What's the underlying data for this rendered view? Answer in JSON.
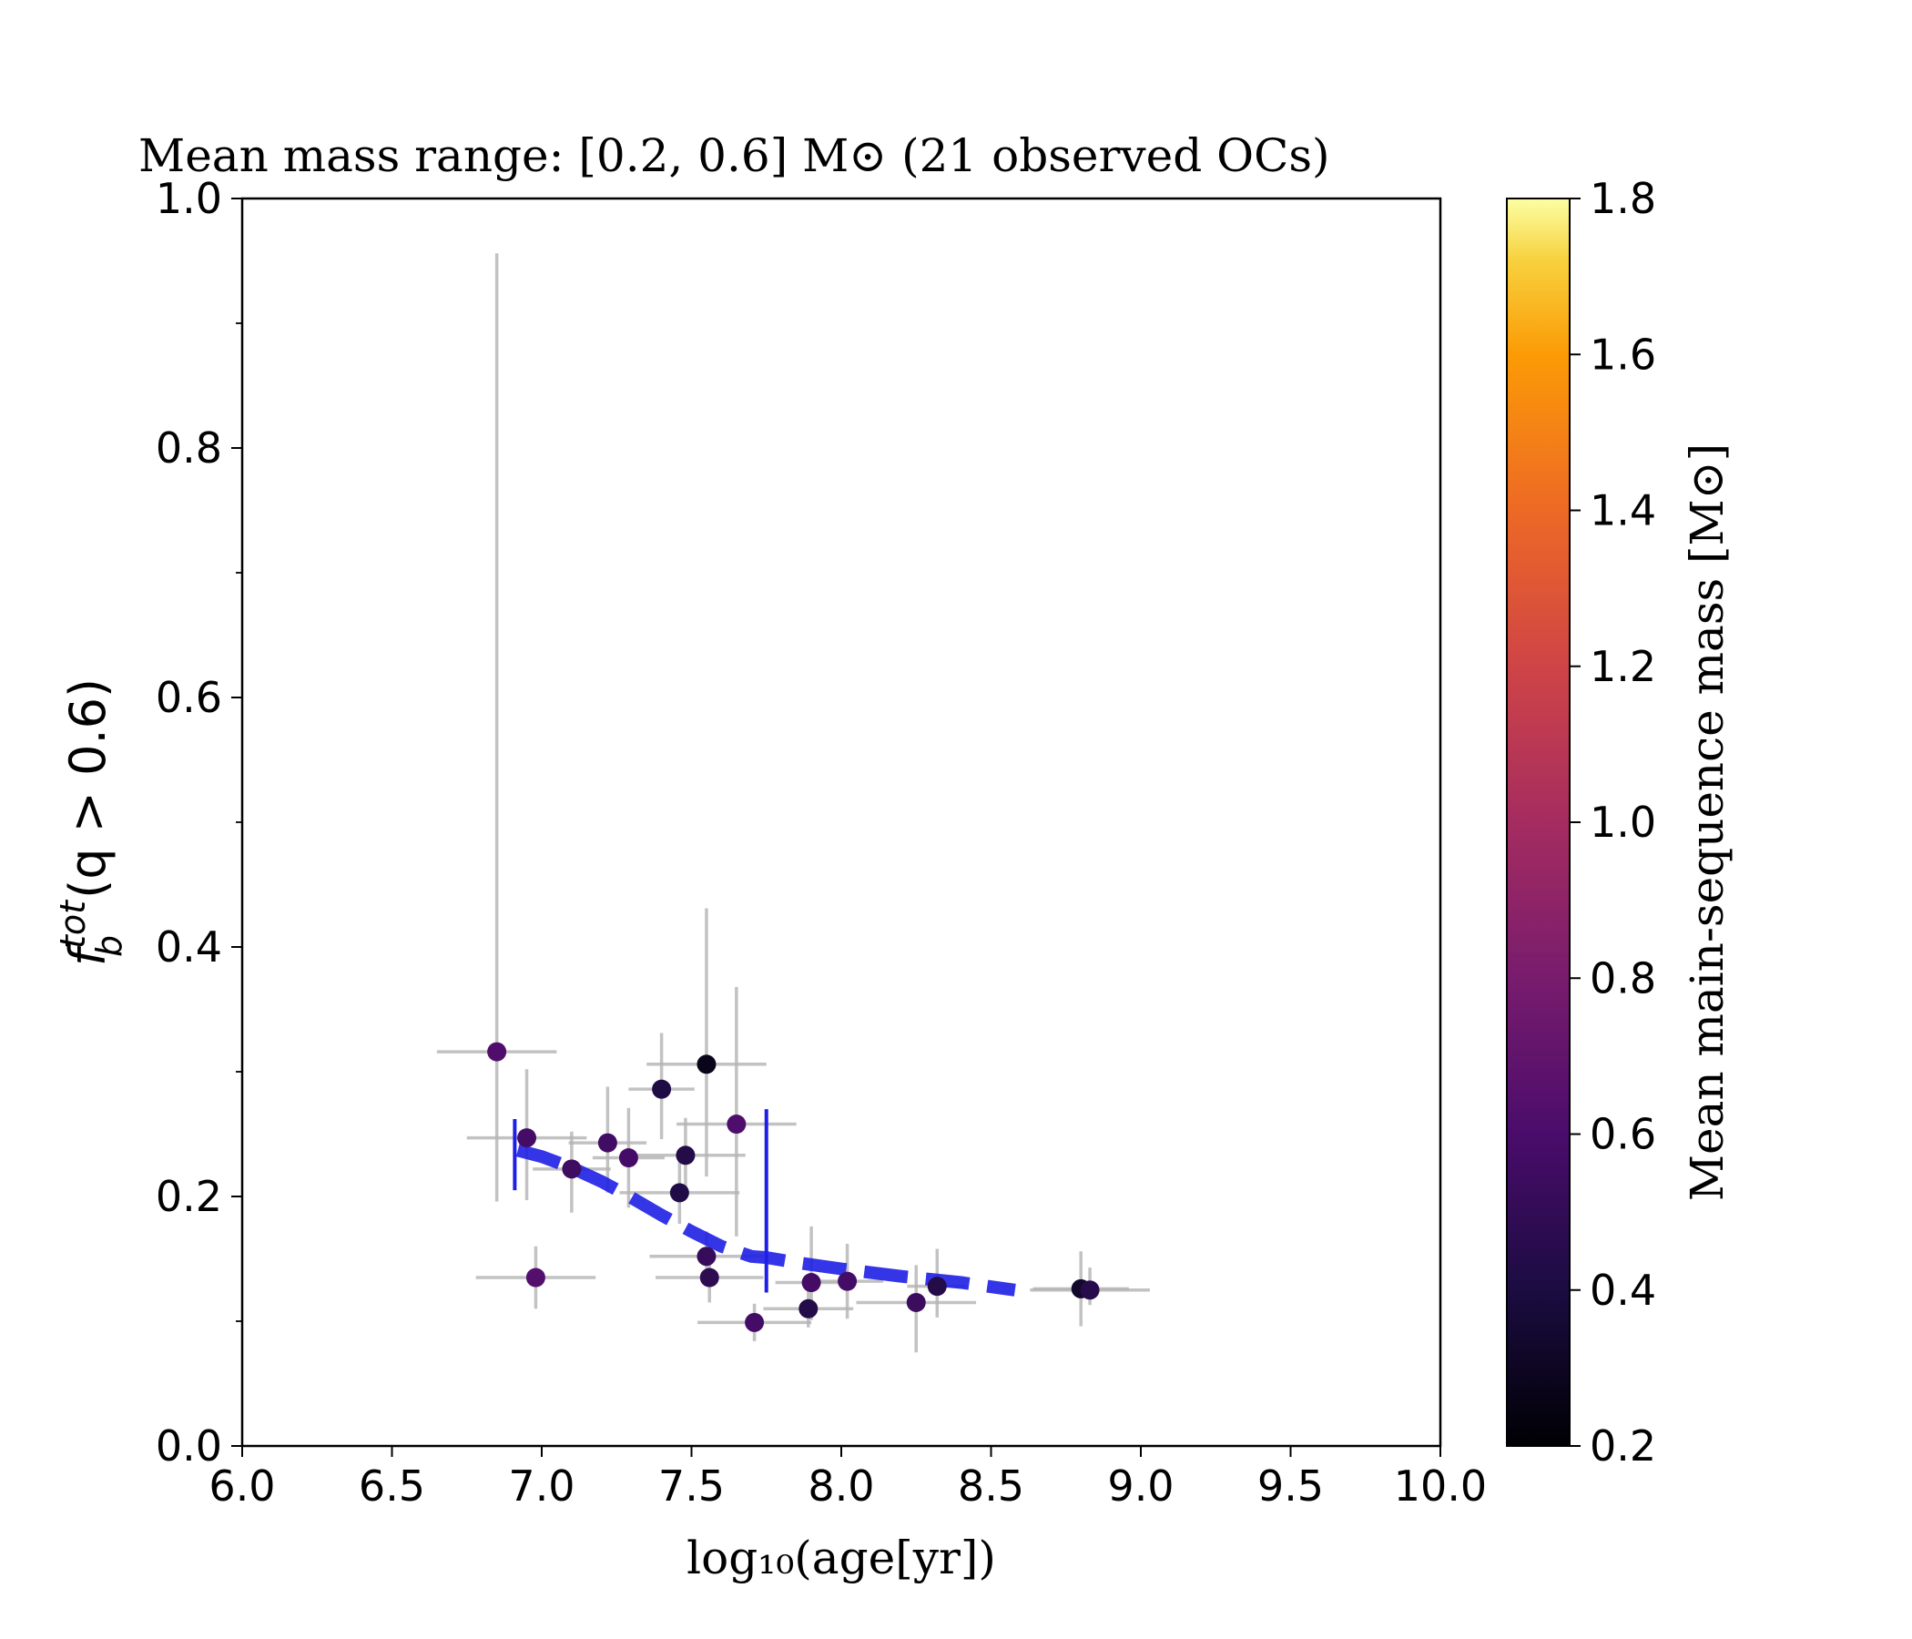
{
  "chart_data": {
    "type": "scatter",
    "title": "Mean mass range: [0.2, 0.6] M⊙  (21 observed OCs)",
    "xlabel": "log₁₀(age[yr])",
    "ylabel": "f_b^tot(q > 0.6)",
    "ylabel_parts": {
      "f": "f",
      "sup": "tot",
      "sub": "b",
      "rest": "(q > 0.6)"
    },
    "xlim": [
      6.0,
      10.0
    ],
    "ylim": [
      0.0,
      1.0
    ],
    "x_ticks": [
      "6.0",
      "6.5",
      "7.0",
      "7.5",
      "8.0",
      "8.5",
      "9.0",
      "9.5",
      "10.0"
    ],
    "y_ticks": [
      "0.0",
      "0.2",
      "0.4",
      "0.6",
      "0.8",
      "1.0"
    ],
    "grid": false,
    "colorbar": {
      "label": "Mean main-sequence mass [M⊙]",
      "range": [
        0.2,
        1.8
      ],
      "ticks": [
        "0.2",
        "0.4",
        "0.6",
        "0.8",
        "1.0",
        "1.2",
        "1.4",
        "1.6",
        "1.8"
      ],
      "colormap": "inferno"
    },
    "points": [
      {
        "x": 6.85,
        "y": 0.316,
        "xerr": 0.2,
        "yerr": [
          0.12,
          0.64
        ],
        "mass": 0.62
      },
      {
        "x": 6.95,
        "y": 0.247,
        "xerr": 0.2,
        "yerr": [
          0.05,
          0.055
        ],
        "mass": 0.58
      },
      {
        "x": 6.98,
        "y": 0.135,
        "xerr": 0.2,
        "yerr": [
          0.025,
          0.025
        ],
        "mass": 0.64
      },
      {
        "x": 7.1,
        "y": 0.222,
        "xerr": 0.13,
        "yerr": [
          0.035,
          0.03
        ],
        "mass": 0.55
      },
      {
        "x": 7.22,
        "y": 0.243,
        "xerr": 0.13,
        "yerr": [
          0.04,
          0.045
        ],
        "mass": 0.56
      },
      {
        "x": 7.29,
        "y": 0.231,
        "xerr": 0.12,
        "yerr": [
          0.04,
          0.04
        ],
        "mass": 0.58
      },
      {
        "x": 7.4,
        "y": 0.286,
        "xerr": 0.11,
        "yerr": [
          0.04,
          0.045
        ],
        "mass": 0.42
      },
      {
        "x": 7.46,
        "y": 0.203,
        "xerr": 0.2,
        "yerr": [
          0.025,
          0.025
        ],
        "mass": 0.43
      },
      {
        "x": 7.48,
        "y": 0.233,
        "xerr": 0.2,
        "yerr": [
          0.03,
          0.03
        ],
        "mass": 0.44
      },
      {
        "x": 7.55,
        "y": 0.306,
        "xerr": 0.2,
        "yerr": [
          0.09,
          0.125
        ],
        "mass": 0.28
      },
      {
        "x": 7.55,
        "y": 0.152,
        "xerr": 0.19,
        "yerr": [
          0.02,
          0.02
        ],
        "mass": 0.52
      },
      {
        "x": 7.56,
        "y": 0.135,
        "xerr": 0.18,
        "yerr": [
          0.02,
          0.02
        ],
        "mass": 0.48
      },
      {
        "x": 7.65,
        "y": 0.258,
        "xerr": 0.2,
        "yerr": [
          0.09,
          0.11
        ],
        "mass": 0.62
      },
      {
        "x": 7.71,
        "y": 0.099,
        "xerr": 0.19,
        "yerr": [
          0.015,
          0.015
        ],
        "mass": 0.58
      },
      {
        "x": 7.89,
        "y": 0.11,
        "xerr": 0.15,
        "yerr": [
          0.015,
          0.015
        ],
        "mass": 0.44
      },
      {
        "x": 7.9,
        "y": 0.131,
        "xerr": 0.12,
        "yerr": [
          0.03,
          0.045
        ],
        "mass": 0.58
      },
      {
        "x": 8.02,
        "y": 0.132,
        "xerr": 0.12,
        "yerr": [
          0.03,
          0.03
        ],
        "mass": 0.57
      },
      {
        "x": 8.25,
        "y": 0.115,
        "xerr": 0.2,
        "yerr": [
          0.04,
          0.03
        ],
        "mass": 0.54
      },
      {
        "x": 8.32,
        "y": 0.128,
        "xerr": 0.1,
        "yerr": [
          0.025,
          0.03
        ],
        "mass": 0.44
      },
      {
        "x": 8.8,
        "y": 0.126,
        "xerr": 0.16,
        "yerr": [
          0.03,
          0.03
        ],
        "mass": 0.33
      },
      {
        "x": 8.83,
        "y": 0.125,
        "xerr": 0.2,
        "yerr": [
          0.012,
          0.018
        ],
        "mass": 0.45
      }
    ],
    "trend_line": {
      "x": [
        6.92,
        7.0,
        7.1,
        7.2,
        7.3,
        7.4,
        7.5,
        7.6,
        7.7,
        7.75,
        7.85,
        8.0,
        8.2,
        8.4,
        8.58
      ],
      "y": [
        0.237,
        0.232,
        0.223,
        0.212,
        0.199,
        0.185,
        0.172,
        0.16,
        0.152,
        0.151,
        0.147,
        0.142,
        0.136,
        0.131,
        0.125
      ],
      "color": "#1f1fe6",
      "style": "dashed"
    },
    "range_markers": [
      {
        "x": 6.91,
        "y": [
          0.205,
          0.262
        ]
      },
      {
        "x": 7.75,
        "y": [
          0.123,
          0.27
        ]
      }
    ]
  }
}
